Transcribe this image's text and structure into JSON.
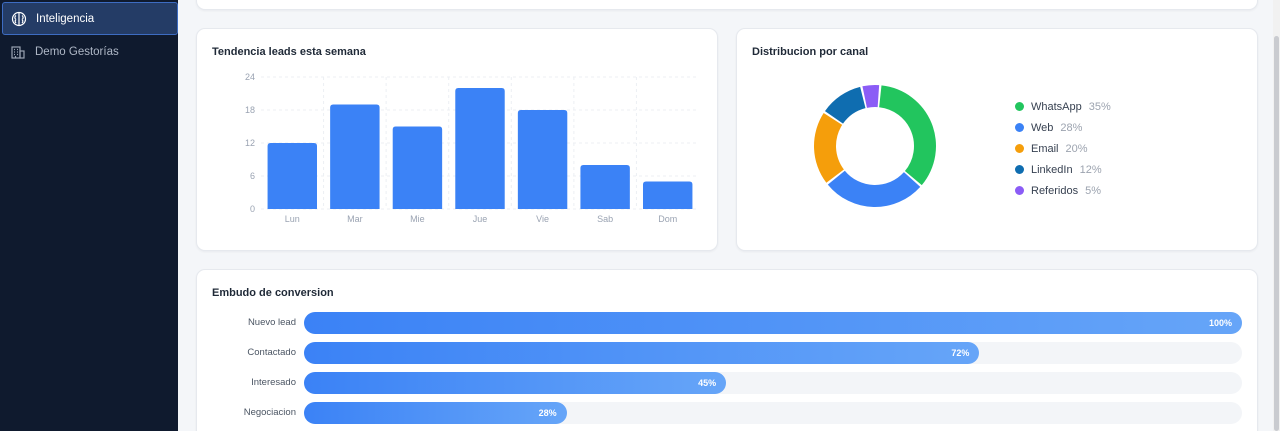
{
  "sidebar": {
    "items": [
      {
        "label": "Inteligencia",
        "icon": "brain-icon",
        "active": true
      },
      {
        "label": "Demo Gestorías",
        "icon": "building-icon",
        "active": false
      }
    ]
  },
  "bar_chart": {
    "title": "Tendencia leads esta semana",
    "chart_data": {
      "type": "bar",
      "categories": [
        "Lun",
        "Mar",
        "Mie",
        "Jue",
        "Vie",
        "Sab",
        "Dom"
      ],
      "values": [
        12,
        19,
        15,
        22,
        18,
        8,
        5
      ],
      "yticks": [
        "0",
        "6",
        "12",
        "18",
        "24"
      ],
      "ylim": [
        0,
        24
      ],
      "color": "#3b82f6",
      "grid": true
    }
  },
  "donut_chart": {
    "title": "Distribucion por canal",
    "chart_data": {
      "type": "pie",
      "categories": [
        "WhatsApp",
        "Web",
        "Email",
        "LinkedIn",
        "Referidos"
      ],
      "values": [
        35,
        28,
        20,
        12,
        5
      ],
      "labels": [
        "35%",
        "28%",
        "20%",
        "12%",
        "5%"
      ],
      "colors": [
        "#22c55e",
        "#3b82f6",
        "#f59e0b",
        "#0f6db0",
        "#8b5cf6"
      ],
      "legend": "right"
    }
  },
  "funnel": {
    "title": "Embudo de conversion",
    "stages": [
      {
        "label": "Nuevo lead",
        "value": 100,
        "pct": "100%"
      },
      {
        "label": "Contactado",
        "value": 72,
        "pct": "72%"
      },
      {
        "label": "Interesado",
        "value": 45,
        "pct": "45%"
      },
      {
        "label": "Negociacion",
        "value": 28,
        "pct": "28%"
      }
    ]
  }
}
